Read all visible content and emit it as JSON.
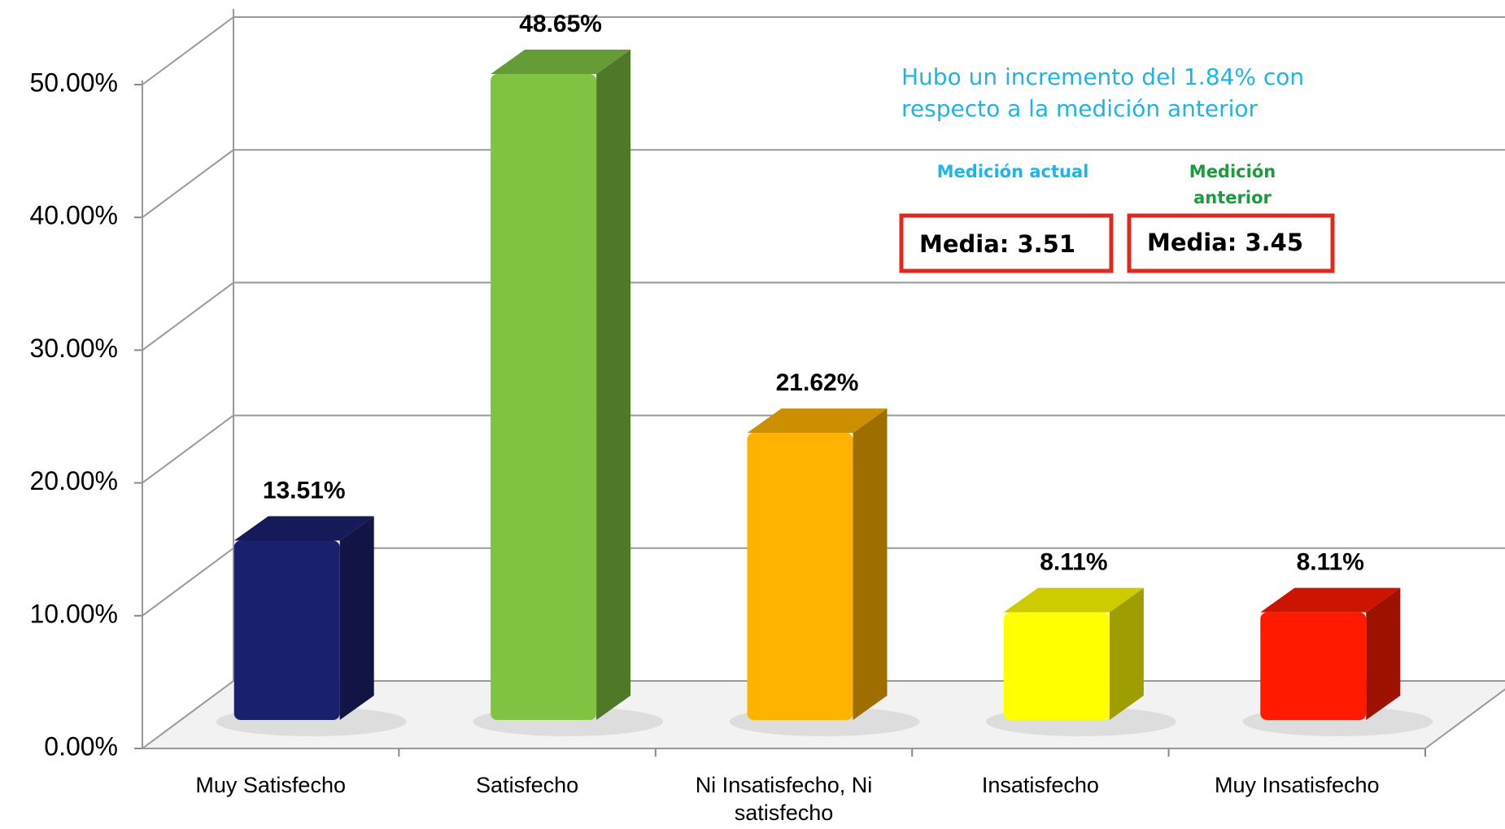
{
  "chart_data": {
    "type": "bar3d",
    "categories": [
      "Muy Satisfecho",
      "Satisfecho",
      "Ni Insatisfecho, Ni satisfecho",
      "Insatisfecho",
      "Muy Insatisfecho"
    ],
    "values": [
      13.51,
      48.65,
      21.62,
      8.11,
      8.11
    ],
    "value_labels": [
      "13.51%",
      "48.65%",
      "21.62%",
      "8.11%",
      "8.11%"
    ],
    "colors": [
      "#1b206e",
      "#80c342",
      "#ffb300",
      "#ffff00",
      "#ff1a00"
    ],
    "ylim": [
      0,
      50
    ],
    "yticks": [
      {
        "value": 0,
        "label": "0.00%"
      },
      {
        "value": 10,
        "label": "10.00%"
      },
      {
        "value": 20,
        "label": "20.00%"
      },
      {
        "value": 30,
        "label": "30.00%"
      },
      {
        "value": 40,
        "label": "40.00%"
      },
      {
        "value": 50,
        "label": "50.00%"
      }
    ],
    "grid": true,
    "annotations": {
      "note": [
        "Hubo un incremento  del  1.84% con",
        "respecto a la medición anterior"
      ],
      "current_label": "Medición actual",
      "previous_label": "Medición anterior",
      "current_value": "Media: 3.51",
      "previous_value": "Media: 3.45"
    }
  }
}
